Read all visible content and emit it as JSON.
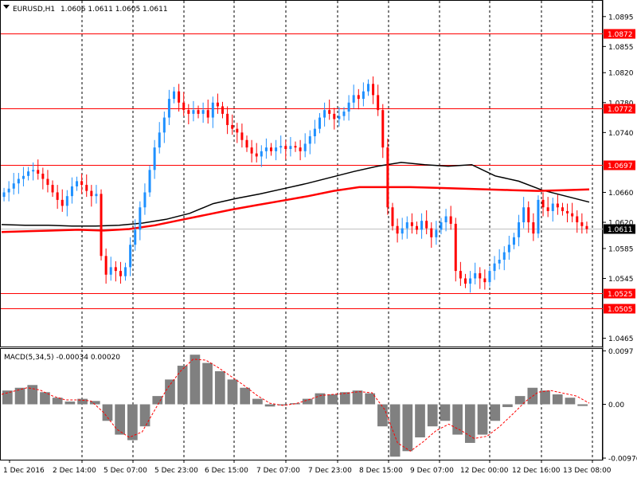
{
  "colors": {
    "background": "#ffffff",
    "frame": "#000000",
    "up_candle": "#1e90ff",
    "down_candle": "#ff0000",
    "level_line": "#ff0000",
    "ma_slow": "#000000",
    "ma_fast": "#ff0000",
    "price_line": "#c0c0c0",
    "macd_hist": "#808080",
    "macd_signal": "#ff0000",
    "current_tag": "#000000",
    "level_tag": "#ff0000"
  },
  "header": {
    "symbol_timeframe": "EURUSD,H1",
    "ohlc": "1.0606 1.0611 1.0605 1.0611"
  },
  "macd_header": {
    "label": "MACD(5,34,5) -0.00034 0.00020"
  },
  "price_axis": {
    "ticks": [
      "1.0895",
      "1.0855",
      "1.0820",
      "1.0780",
      "1.0740",
      "1.0660",
      "1.0620",
      "1.0585",
      "1.0545",
      "1.0465"
    ]
  },
  "levels": [
    "1.0872",
    "1.0772",
    "1.0697",
    "1.0525",
    "1.0505"
  ],
  "current_price": "1.0611",
  "macd_axis": {
    "ticks": [
      "0.0097",
      "0.00",
      "-0.00976"
    ]
  },
  "time_axis": {
    "labels": [
      "1 Dec 2016",
      "2 Dec 14:00",
      "5 Dec 07:00",
      "5 Dec 23:00",
      "6 Dec 15:00",
      "7 Dec 07:00",
      "7 Dec 23:00",
      "8 Dec 15:00",
      "9 Dec 07:00",
      "12 Dec 00:00",
      "12 Dec 16:00",
      "13 Dec 08:00"
    ]
  },
  "chart_data": {
    "type": "line",
    "title": "EURUSD,H1",
    "price_range": [
      1.0455,
      1.0915
    ],
    "macd_range": [
      -0.0099,
      0.0099
    ],
    "grid": "vertical dashed separators only",
    "series": [
      {
        "name": "",
        "role": "close",
        "values": [
          1.066,
          1.0665,
          1.0672,
          1.0678,
          1.0682,
          1.0688,
          1.069,
          1.0685,
          1.0678,
          1.067,
          1.066,
          1.065,
          1.0642,
          1.0655,
          1.0668,
          1.0675,
          1.067,
          1.0662,
          1.0655,
          1.0658,
          1.0575,
          1.055,
          1.056,
          1.0555,
          1.0548,
          1.056,
          1.059,
          1.061,
          1.064,
          1.066,
          1.069,
          1.072,
          1.074,
          1.076,
          1.0785,
          1.0795,
          1.078,
          1.077,
          1.0765,
          1.077,
          1.0765,
          1.077,
          1.076,
          1.078,
          1.0775,
          1.0765,
          1.075,
          1.0745,
          1.074,
          1.073,
          1.072,
          1.0712,
          1.0708,
          1.0715,
          1.072,
          1.0715,
          1.072,
          1.0722,
          1.0718,
          1.0722,
          1.072,
          1.0715,
          1.0725,
          1.0735,
          1.0745,
          1.076,
          1.077,
          1.0765,
          1.0758,
          1.0762,
          1.0768,
          1.078,
          1.079,
          1.0785,
          1.0795,
          1.0805,
          1.079,
          1.077,
          1.072,
          1.064,
          1.0615,
          1.0605,
          1.0612,
          1.062,
          1.0615,
          1.061,
          1.0622,
          1.0612,
          1.06,
          1.061,
          1.062,
          1.0628,
          1.0618,
          1.0555,
          1.0545,
          1.0538,
          1.0545,
          1.0552,
          1.0545,
          1.054,
          1.0555,
          1.0565,
          1.057,
          1.058,
          1.059,
          1.06,
          1.062,
          1.064,
          1.062,
          1.0605,
          1.065,
          1.064,
          1.0635,
          1.0645,
          1.064,
          1.0635,
          1.0632,
          1.0628,
          1.062,
          1.0615,
          1.0611
        ]
      },
      {
        "name": "",
        "role": "moving average (black)",
        "values": [
          1.0617,
          1.0616,
          1.0616,
          1.0615,
          1.0615,
          1.0616,
          1.0619,
          1.0624,
          1.0632,
          1.0645,
          1.0652,
          1.0658,
          1.0665,
          1.0672,
          1.068,
          1.0688,
          1.0695,
          1.07,
          1.0697,
          1.0695,
          1.0697,
          1.0682,
          1.0675,
          1.0663,
          1.0655,
          1.0647
        ]
      },
      {
        "name": "",
        "role": "moving average (red)",
        "values": [
          1.0607,
          1.0608,
          1.0609,
          1.061,
          1.0609,
          1.0611,
          1.0616,
          1.0623,
          1.063,
          1.0637,
          1.0643,
          1.0649,
          1.0655,
          1.0662,
          1.0667,
          1.0667,
          1.0667,
          1.0666,
          1.0665,
          1.0664,
          1.0663,
          1.0662,
          1.0663,
          1.0664
        ]
      },
      {
        "name": "MACD(5,34,5)",
        "role": "macd histogram",
        "values": [
          0.0025,
          0.003,
          0.0035,
          0.0022,
          0.0012,
          0.0005,
          0.001,
          0.0006,
          -0.003,
          -0.0055,
          -0.0065,
          -0.004,
          0.0015,
          0.0045,
          0.007,
          0.009,
          0.0075,
          0.006,
          0.0045,
          0.003,
          0.001,
          -0.0004,
          -0.0002,
          0.0002,
          0.001,
          0.002,
          0.0018,
          0.0022,
          0.0025,
          0.002,
          -0.004,
          -0.0095,
          -0.0085,
          -0.006,
          -0.004,
          -0.003,
          -0.0055,
          -0.007,
          -0.0055,
          -0.003,
          -0.0005,
          0.0015,
          0.003,
          0.0025,
          0.0018,
          0.0012,
          -0.0003
        ]
      },
      {
        "name": "",
        "role": "macd signal",
        "values": [
          0.0018,
          0.0024,
          0.003,
          0.0026,
          0.0015,
          0.0008,
          0.0008,
          0.0006,
          -0.0015,
          -0.0045,
          -0.006,
          -0.005,
          -0.001,
          0.003,
          0.006,
          0.0082,
          0.008,
          0.0066,
          0.005,
          0.0034,
          0.0016,
          0.0002,
          -0.0002,
          0.0001,
          0.0008,
          0.0016,
          0.0018,
          0.002,
          0.0023,
          0.0021,
          -0.001,
          -0.007,
          -0.0085,
          -0.0068,
          -0.0048,
          -0.0036,
          -0.0048,
          -0.0062,
          -0.0058,
          -0.004,
          -0.0018,
          0.0005,
          0.0022,
          0.0025,
          0.002,
          0.0015,
          0.0002
        ]
      }
    ]
  }
}
